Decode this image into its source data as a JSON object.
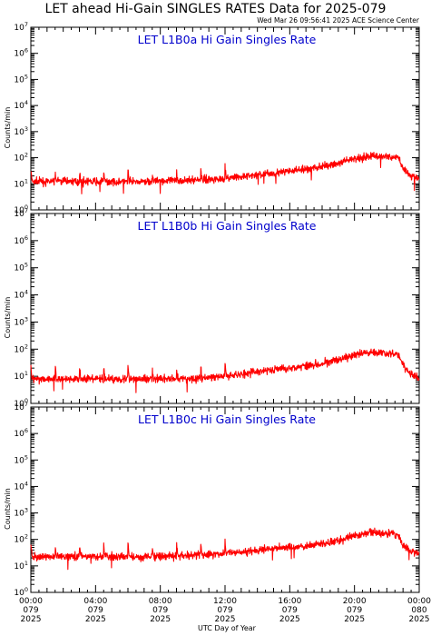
{
  "title": "LET ahead Hi-Gain SINGLES RATES Data for 2025-079",
  "timestamp": "Wed Mar 26 09:56:41 2025 ACE Science Center",
  "xlabel": "UTC Day of Year",
  "ylabel": "Counts/min",
  "colors": {
    "series": "#ff0000",
    "panel_title": "#0000cc",
    "axes": "#000000",
    "background": "#ffffff"
  },
  "chart_data": [
    {
      "type": "line",
      "title": "LET L1B0a Hi Gain Singles Rate",
      "yscale": "log",
      "ylim": [
        1,
        10000000
      ],
      "xlim": [
        0,
        24
      ],
      "ylabel": "Counts/min",
      "series": [
        {
          "x": [
            0,
            1,
            2,
            3,
            4,
            5,
            6,
            7,
            8,
            9,
            10,
            11,
            12,
            13,
            14,
            15,
            16,
            17,
            18,
            19,
            20,
            21,
            22,
            22.7,
            23,
            23.5,
            24
          ],
          "values": [
            12,
            12,
            13,
            12,
            12,
            12,
            12,
            12,
            13,
            13,
            14,
            15,
            16,
            18,
            22,
            26,
            30,
            36,
            45,
            60,
            90,
            120,
            110,
            100,
            40,
            20,
            15
          ]
        }
      ]
    },
    {
      "type": "line",
      "title": "LET L1B0b Hi Gain Singles Rate",
      "yscale": "log",
      "ylim": [
        1,
        10000000
      ],
      "xlim": [
        0,
        24
      ],
      "ylabel": "Counts/min",
      "series": [
        {
          "x": [
            0,
            1,
            2,
            3,
            4,
            5,
            6,
            7,
            8,
            9,
            10,
            11,
            12,
            13,
            14,
            15,
            16,
            17,
            18,
            19,
            20,
            21,
            22,
            22.7,
            23,
            23.5,
            24
          ],
          "values": [
            8,
            8,
            8,
            8,
            8,
            8,
            8,
            8,
            8,
            8,
            8,
            9,
            10,
            12,
            15,
            18,
            20,
            25,
            30,
            40,
            60,
            80,
            70,
            65,
            25,
            12,
            8
          ]
        }
      ]
    },
    {
      "type": "line",
      "title": "LET L1B0c Hi Gain Singles Rate",
      "yscale": "log",
      "ylim": [
        1,
        10000000
      ],
      "xlim": [
        0,
        24
      ],
      "ylabel": "Counts/min",
      "series": [
        {
          "x": [
            0,
            1,
            2,
            3,
            4,
            5,
            6,
            7,
            8,
            9,
            10,
            11,
            12,
            13,
            14,
            15,
            16,
            17,
            18,
            19,
            20,
            21,
            22,
            22.7,
            23,
            23.5,
            24
          ],
          "values": [
            22,
            22,
            23,
            23,
            22,
            22,
            22,
            22,
            23,
            24,
            25,
            27,
            30,
            34,
            40,
            45,
            50,
            58,
            68,
            90,
            140,
            180,
            170,
            150,
            60,
            35,
            28
          ]
        }
      ]
    }
  ],
  "xticks": [
    {
      "x": 0,
      "lines": [
        "00:00",
        "079",
        "2025"
      ]
    },
    {
      "x": 4,
      "lines": [
        "04:00",
        "079",
        "2025"
      ]
    },
    {
      "x": 8,
      "lines": [
        "08:00",
        "079",
        "2025"
      ]
    },
    {
      "x": 12,
      "lines": [
        "12:00",
        "079",
        "2025"
      ]
    },
    {
      "x": 16,
      "lines": [
        "16:00",
        "079",
        "2025"
      ]
    },
    {
      "x": 20,
      "lines": [
        "20:00",
        "079",
        "2025"
      ]
    },
    {
      "x": 24,
      "lines": [
        "00:00",
        "080",
        "2025"
      ]
    }
  ],
  "yticks": [
    {
      "exp": 0,
      "base": "10",
      "sup": "0"
    },
    {
      "exp": 1,
      "base": "10",
      "sup": "1"
    },
    {
      "exp": 2,
      "base": "10",
      "sup": "2"
    },
    {
      "exp": 3,
      "base": "10",
      "sup": "3"
    },
    {
      "exp": 4,
      "base": "10",
      "sup": "4"
    },
    {
      "exp": 5,
      "base": "10",
      "sup": "5"
    },
    {
      "exp": 6,
      "base": "10",
      "sup": "6"
    },
    {
      "exp": 7,
      "base": "10",
      "sup": "7"
    }
  ]
}
